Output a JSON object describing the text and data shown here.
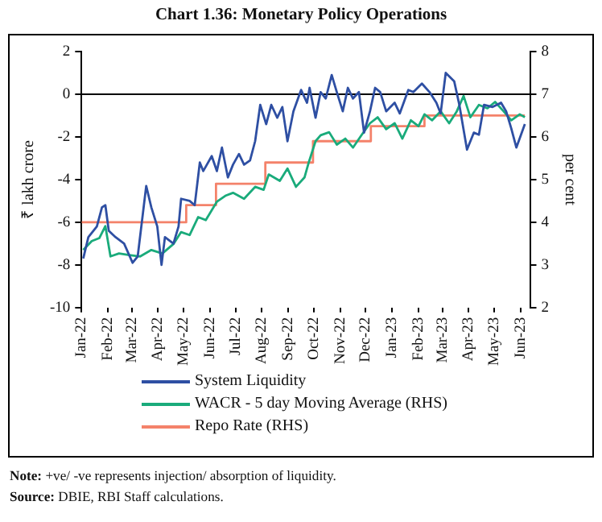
{
  "chart_data": {
    "type": "line",
    "title": "Chart 1.36: Monetary Policy Operations",
    "ylabel": "₹ lakh crore",
    "y2label": "per cent",
    "xlim": [
      "2022-01-01",
      "2023-06-12"
    ],
    "xticks": [
      {
        "value": "2022-01-01",
        "label": "Jan-22"
      },
      {
        "value": "2022-02-01",
        "label": "Feb-22"
      },
      {
        "value": "2022-03-01",
        "label": "Mar-22"
      },
      {
        "value": "2022-04-01",
        "label": "Apr-22"
      },
      {
        "value": "2022-05-01",
        "label": "May-22"
      },
      {
        "value": "2022-06-01",
        "label": "Jun-22"
      },
      {
        "value": "2022-07-01",
        "label": "Jul-22"
      },
      {
        "value": "2022-08-01",
        "label": "Aug-22"
      },
      {
        "value": "2022-09-01",
        "label": "Sep-22"
      },
      {
        "value": "2022-10-01",
        "label": "Oct-22"
      },
      {
        "value": "2022-11-01",
        "label": "Nov-22"
      },
      {
        "value": "2022-12-01",
        "label": "Dec-22"
      },
      {
        "value": "2023-01-01",
        "label": "Jan-23"
      },
      {
        "value": "2023-02-01",
        "label": "Feb-23"
      },
      {
        "value": "2023-03-01",
        "label": "Mar-23"
      },
      {
        "value": "2023-04-01",
        "label": "Apr-23"
      },
      {
        "value": "2023-05-01",
        "label": "May-23"
      },
      {
        "value": "2023-06-01",
        "label": "Jun-23"
      }
    ],
    "ylim": [
      -10,
      2
    ],
    "yticks": [
      -10,
      -8,
      -6,
      -4,
      -2,
      0,
      2
    ],
    "y2lim": [
      2,
      8
    ],
    "y2ticks": [
      2,
      3,
      4,
      5,
      6,
      7,
      8
    ],
    "ref_lines": [
      {
        "axis": "y",
        "value": 0,
        "color": "#000000"
      }
    ],
    "legend": "bottom",
    "marker": "none",
    "series": [
      {
        "name": "System Liquidity",
        "color": "#2e4fa3",
        "x": [
          "2022-01-03",
          "2022-01-09",
          "2022-01-19",
          "2022-01-25",
          "2022-01-29",
          "2022-02-02",
          "2022-02-10",
          "2022-02-20",
          "2022-03-02",
          "2022-03-08",
          "2022-03-18",
          "2022-03-24",
          "2022-03-31",
          "2022-04-05",
          "2022-04-09",
          "2022-04-19",
          "2022-04-25",
          "2022-04-28",
          "2022-05-08",
          "2022-05-14",
          "2022-05-20",
          "2022-05-24",
          "2022-06-03",
          "2022-06-09",
          "2022-06-15",
          "2022-06-22",
          "2022-06-28",
          "2022-07-05",
          "2022-07-11",
          "2022-07-18",
          "2022-07-24",
          "2022-07-30",
          "2022-08-06",
          "2022-08-12",
          "2022-08-19",
          "2022-08-25",
          "2022-08-31",
          "2022-09-07",
          "2022-09-16",
          "2022-09-23",
          "2022-09-26",
          "2022-10-03",
          "2022-10-09",
          "2022-10-15",
          "2022-10-22",
          "2022-10-28",
          "2022-11-04",
          "2022-11-10",
          "2022-11-16",
          "2022-11-23",
          "2022-11-29",
          "2022-12-06",
          "2022-12-12",
          "2022-12-18",
          "2022-12-25",
          "2023-01-04",
          "2023-01-10",
          "2023-01-20",
          "2023-01-26",
          "2023-02-05",
          "2023-02-14",
          "2023-02-22",
          "2023-02-27",
          "2023-03-05",
          "2023-03-15",
          "2023-03-21",
          "2023-03-30",
          "2023-04-07",
          "2023-04-13",
          "2023-04-19",
          "2023-04-29",
          "2023-05-09",
          "2023-05-15",
          "2023-05-21",
          "2023-05-27",
          "2023-06-06"
        ],
        "values": [
          -7.7,
          -6.7,
          -6.2,
          -5.3,
          -5.2,
          -6.4,
          -6.7,
          -7.0,
          -7.9,
          -7.6,
          -4.3,
          -5.3,
          -6.2,
          -8.0,
          -6.7,
          -7.0,
          -6.2,
          -4.9,
          -5.0,
          -5.2,
          -3.2,
          -3.6,
          -2.9,
          -3.6,
          -2.5,
          -3.9,
          -3.3,
          -2.8,
          -3.3,
          -3.1,
          -2.2,
          -0.5,
          -1.4,
          -0.5,
          -1.1,
          -0.6,
          -2.2,
          -0.8,
          0.2,
          -0.4,
          0.3,
          -1.1,
          0.1,
          -0.2,
          0.9,
          0.1,
          -0.8,
          0.3,
          -0.2,
          0.1,
          -1.8,
          -0.8,
          0.3,
          0.1,
          -0.8,
          -0.4,
          -0.9,
          0.2,
          0.1,
          0.5,
          0.1,
          -0.4,
          -0.9,
          1.0,
          0.6,
          -0.5,
          -2.6,
          -1.8,
          -1.9,
          -0.5,
          -0.6,
          -0.4,
          -0.8,
          -1.6,
          -2.5,
          -1.4
        ]
      },
      {
        "name": "WACR - 5 day Moving Average (RHS)",
        "color": "#1aab7b",
        "axis": "y2",
        "x": [
          "2022-01-03",
          "2022-01-13",
          "2022-01-22",
          "2022-01-29",
          "2022-02-04",
          "2022-02-14",
          "2022-02-26",
          "2022-03-11",
          "2022-03-24",
          "2022-04-06",
          "2022-04-19",
          "2022-04-28",
          "2022-05-08",
          "2022-05-18",
          "2022-05-27",
          "2022-06-09",
          "2022-06-19",
          "2022-06-28",
          "2022-07-11",
          "2022-07-24",
          "2022-08-03",
          "2022-08-09",
          "2022-08-22",
          "2022-08-31",
          "2022-09-10",
          "2022-09-20",
          "2022-09-25",
          "2022-10-03",
          "2022-10-09",
          "2022-10-19",
          "2022-10-28",
          "2022-11-07",
          "2022-11-16",
          "2022-11-26",
          "2022-12-06",
          "2022-12-15",
          "2022-12-25",
          "2023-01-04",
          "2023-01-13",
          "2023-01-23",
          "2023-02-01",
          "2023-02-08",
          "2023-02-17",
          "2023-02-27",
          "2023-03-09",
          "2023-03-18",
          "2023-03-26",
          "2023-04-03",
          "2023-04-13",
          "2023-04-23",
          "2023-05-02",
          "2023-05-12",
          "2023-05-21",
          "2023-05-31",
          "2023-06-06"
        ],
        "values": [
          3.35,
          3.56,
          3.63,
          3.91,
          3.2,
          3.27,
          3.23,
          3.2,
          3.35,
          3.27,
          3.49,
          3.77,
          3.7,
          4.12,
          4.05,
          4.48,
          4.62,
          4.69,
          4.55,
          4.83,
          4.76,
          5.12,
          4.97,
          5.26,
          4.83,
          5.05,
          5.4,
          5.9,
          6.04,
          6.11,
          5.82,
          5.96,
          5.75,
          6.04,
          6.32,
          6.46,
          6.18,
          6.32,
          5.96,
          6.39,
          6.25,
          6.53,
          6.39,
          6.6,
          6.32,
          6.6,
          6.96,
          6.46,
          6.75,
          6.67,
          6.82,
          6.6,
          6.39,
          6.53,
          6.46
        ]
      },
      {
        "name": "Repo Rate (RHS)",
        "type": "step",
        "color": "#f4826a",
        "axis": "y2",
        "x": [
          "2022-01-01",
          "2022-05-04",
          "2022-06-08",
          "2022-08-05",
          "2022-09-30",
          "2022-12-07",
          "2023-02-08",
          "2023-06-06"
        ],
        "values": [
          4.0,
          4.4,
          4.9,
          5.4,
          5.9,
          6.25,
          6.5,
          6.5
        ]
      }
    ],
    "annotations": [
      "Note: +ve/ -ve represents injection/ absorption of liquidity.",
      "Source: DBIE, RBI Staff calculations."
    ]
  }
}
